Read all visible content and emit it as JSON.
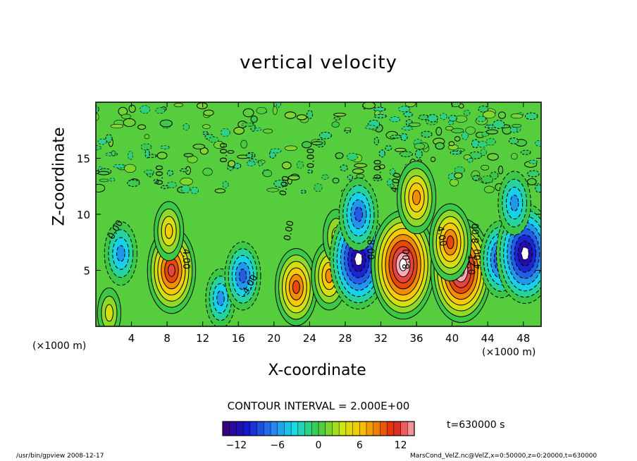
{
  "chart_data": {
    "type": "heatmap",
    "title": "vertical velocity",
    "xlabel": "X-coordinate",
    "ylabel": "Z-coordinate",
    "x_units": "(×1000 m)",
    "y_units": "(×1000 m)",
    "xlim": [
      0,
      50
    ],
    "ylim": [
      0,
      20
    ],
    "x_ticks": [
      4,
      8,
      12,
      16,
      20,
      24,
      28,
      32,
      36,
      40,
      44,
      48
    ],
    "y_ticks": [
      5,
      10,
      15
    ],
    "contour_interval_text": "CONTOUR INTERVAL = 2.000E+00",
    "contour_labels": [
      "0.00",
      "4.00",
      "8.00",
      "12.0",
      "-4.00",
      "-8.00"
    ],
    "colorbar": {
      "min": -14,
      "max": 14,
      "ticks": [
        -12,
        -6,
        0,
        6,
        12
      ]
    },
    "cells": [
      {
        "x": 2.8,
        "z": 6.5,
        "w": -6
      },
      {
        "x": 8.5,
        "z": 5.0,
        "w": 11
      },
      {
        "x": 8.2,
        "z": 8.5,
        "w": 5
      },
      {
        "x": 1.5,
        "z": 1.2,
        "w": 3
      },
      {
        "x": 14.0,
        "z": 2.5,
        "w": -5
      },
      {
        "x": 16.5,
        "z": 4.5,
        "w": -7
      },
      {
        "x": 22.5,
        "z": 3.5,
        "w": 9
      },
      {
        "x": 26.2,
        "z": 4.5,
        "w": 7
      },
      {
        "x": 27.0,
        "z": 8.0,
        "w": 4
      },
      {
        "x": 29.5,
        "z": 6.0,
        "w": -14
      },
      {
        "x": 29.5,
        "z": 10.0,
        "w": -8
      },
      {
        "x": 34.5,
        "z": 5.5,
        "w": 16
      },
      {
        "x": 36.0,
        "z": 11.5,
        "w": 8
      },
      {
        "x": 41.0,
        "z": 5.0,
        "w": 15
      },
      {
        "x": 39.8,
        "z": 7.5,
        "w": 9
      },
      {
        "x": 45.5,
        "z": 6.0,
        "w": -9
      },
      {
        "x": 48.2,
        "z": 6.5,
        "w": -14
      },
      {
        "x": 47.0,
        "z": 11.0,
        "w": -6
      }
    ]
  },
  "annotations": {
    "time": "t=630000 s",
    "footer_left": "/usr/bin/gpview   2008-12-17",
    "footer_right": "MarsCond_VelZ.nc@VelZ,x=0:50000,z=0:20000,t=630000"
  }
}
